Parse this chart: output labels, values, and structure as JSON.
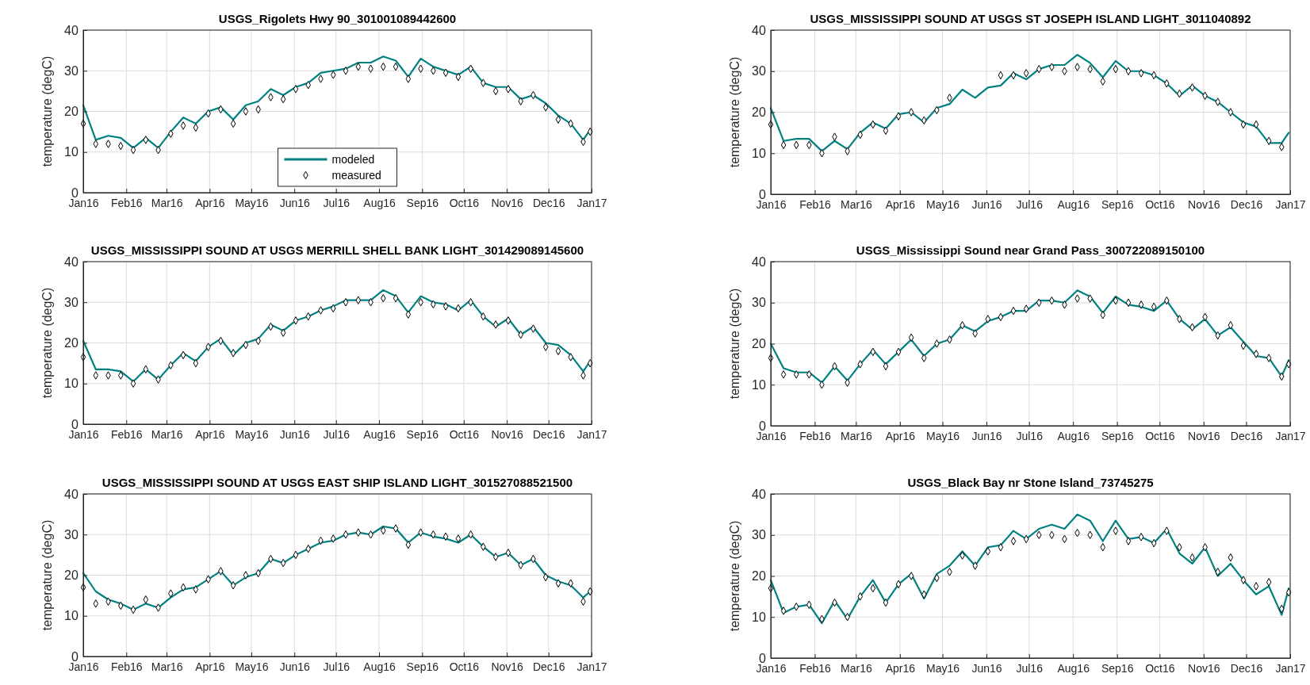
{
  "chart_data": [
    {
      "type": "line",
      "title": "USGS_Rigolets Hwy 90_301001089442600",
      "ylabel": "temperature (degC)",
      "x": [
        "2016-01-01",
        "2016-01-10",
        "2016-01-19",
        "2016-01-28",
        "2016-02-06",
        "2016-02-15",
        "2016-02-24",
        "2016-03-04",
        "2016-03-13",
        "2016-03-22",
        "2016-03-31",
        "2016-04-09",
        "2016-04-18",
        "2016-04-27",
        "2016-05-06",
        "2016-05-15",
        "2016-05-24",
        "2016-06-02",
        "2016-06-11",
        "2016-06-20",
        "2016-06-29",
        "2016-07-08",
        "2016-07-17",
        "2016-07-26",
        "2016-08-04",
        "2016-08-13",
        "2016-08-22",
        "2016-08-31",
        "2016-09-09",
        "2016-09-18",
        "2016-09-27",
        "2016-10-06",
        "2016-10-15",
        "2016-10-24",
        "2016-11-02",
        "2016-11-11",
        "2016-11-20",
        "2016-11-29",
        "2016-12-08",
        "2016-12-17",
        "2016-12-26",
        "2016-12-31"
      ],
      "series": [
        {
          "name": "modeled",
          "type": "line",
          "color": "#008080",
          "values": [
            21.5,
            13,
            14,
            13.5,
            11,
            13.5,
            11,
            15,
            18.5,
            17,
            20,
            21,
            18,
            21.5,
            22.5,
            25.5,
            24,
            26,
            27,
            29.5,
            30,
            30.5,
            32,
            32,
            33.5,
            32.5,
            28.5,
            33,
            31,
            30,
            29,
            31,
            27,
            26,
            26,
            23,
            24,
            22,
            19,
            17,
            13,
            15.5
          ]
        },
        {
          "name": "measured",
          "type": "scatter",
          "marker": "diamond",
          "color": "#000000",
          "values": [
            17,
            12,
            12,
            11.5,
            10.5,
            13,
            10.5,
            14.5,
            16.5,
            16,
            19.5,
            20.5,
            17,
            20,
            20.5,
            23.5,
            23,
            25.5,
            26.5,
            28,
            29,
            30,
            31,
            30.5,
            31,
            31,
            28,
            30.5,
            30,
            29.5,
            28.5,
            30.5,
            27,
            25,
            25.5,
            22.5,
            24,
            21,
            18,
            17,
            12.5,
            15
          ]
        }
      ],
      "xlim": [
        "2016-01-01",
        "2017-01-01"
      ],
      "xticks": [
        {
          "value": "2016-01-01",
          "label": "Jan16"
        },
        {
          "value": "2016-02-01",
          "label": "Feb16"
        },
        {
          "value": "2016-03-01",
          "label": "Mar16"
        },
        {
          "value": "2016-04-01",
          "label": "Apr16"
        },
        {
          "value": "2016-05-01",
          "label": "May16"
        },
        {
          "value": "2016-06-01",
          "label": "Jun16"
        },
        {
          "value": "2016-07-01",
          "label": "Jul16"
        },
        {
          "value": "2016-08-01",
          "label": "Aug16"
        },
        {
          "value": "2016-09-01",
          "label": "Sep16"
        },
        {
          "value": "2016-10-01",
          "label": "Oct16"
        },
        {
          "value": "2016-11-01",
          "label": "Nov16"
        },
        {
          "value": "2016-12-01",
          "label": "Dec16"
        },
        {
          "value": "2017-01-01",
          "label": "Jan17"
        }
      ],
      "ylim": [
        0,
        40
      ],
      "yticks": [
        0,
        10,
        20,
        30,
        40
      ],
      "grid": true,
      "legend": "bottom"
    },
    {
      "type": "line",
      "title": "USGS_MISSISSIPPI SOUND AT USGS ST JOSEPH ISLAND LIGHT_3011040892",
      "ylabel": "temperature (degC)",
      "x": [
        "2016-01-01",
        "2016-01-10",
        "2016-01-19",
        "2016-01-28",
        "2016-02-06",
        "2016-02-15",
        "2016-02-24",
        "2016-03-04",
        "2016-03-13",
        "2016-03-22",
        "2016-03-31",
        "2016-04-09",
        "2016-04-18",
        "2016-04-27",
        "2016-05-06",
        "2016-05-15",
        "2016-05-24",
        "2016-06-02",
        "2016-06-11",
        "2016-06-20",
        "2016-06-29",
        "2016-07-08",
        "2016-07-17",
        "2016-07-26",
        "2016-08-04",
        "2016-08-13",
        "2016-08-22",
        "2016-08-31",
        "2016-09-09",
        "2016-09-18",
        "2016-09-27",
        "2016-10-06",
        "2016-10-15",
        "2016-10-24",
        "2016-11-02",
        "2016-11-11",
        "2016-11-20",
        "2016-11-29",
        "2016-12-08",
        "2016-12-17",
        "2016-12-26",
        "2016-12-31"
      ],
      "series": [
        {
          "type": "line",
          "color": "#008080",
          "values": [
            21,
            13,
            13.5,
            13.5,
            10.5,
            13,
            11,
            15,
            17.5,
            16,
            19.5,
            20,
            17.5,
            21,
            22,
            25.5,
            23.5,
            26,
            26.5,
            29.5,
            28,
            30.5,
            31.5,
            31.5,
            34,
            32,
            28.5,
            32.5,
            30,
            30,
            29,
            27,
            24,
            26.5,
            24,
            22.5,
            20,
            17.5,
            16.5,
            12.5,
            12.5,
            15
          ]
        },
        {
          "type": "scatter",
          "marker": "diamond",
          "color": "#000000",
          "values": [
            17,
            12,
            12,
            12,
            10,
            14,
            10.5,
            14.5,
            17,
            15.5,
            19,
            20,
            18,
            20.5,
            23.5,
            null,
            null,
            null,
            29,
            29,
            29.5,
            30.5,
            31,
            30,
            31,
            30.5,
            27.5,
            30.5,
            30,
            29.5,
            29,
            27,
            24.5,
            26,
            24,
            22.5,
            20,
            17,
            17,
            13,
            11.5,
            null
          ]
        }
      ],
      "xlim": [
        "2016-01-01",
        "2017-01-01"
      ],
      "xticks": [
        {
          "value": "2016-01-01",
          "label": "Jan16"
        },
        {
          "value": "2016-02-01",
          "label": "Feb16"
        },
        {
          "value": "2016-03-01",
          "label": "Mar16"
        },
        {
          "value": "2016-04-01",
          "label": "Apr16"
        },
        {
          "value": "2016-05-01",
          "label": "May16"
        },
        {
          "value": "2016-06-01",
          "label": "Jun16"
        },
        {
          "value": "2016-07-01",
          "label": "Jul16"
        },
        {
          "value": "2016-08-01",
          "label": "Aug16"
        },
        {
          "value": "2016-09-01",
          "label": "Sep16"
        },
        {
          "value": "2016-10-01",
          "label": "Oct16"
        },
        {
          "value": "2016-11-01",
          "label": "Nov16"
        },
        {
          "value": "2016-12-01",
          "label": "Dec16"
        },
        {
          "value": "2017-01-01",
          "label": "Jan17"
        }
      ],
      "ylim": [
        0,
        40
      ],
      "yticks": [
        0,
        10,
        20,
        30,
        40
      ],
      "grid": true
    },
    {
      "type": "line",
      "title": "USGS_MISSISSIPPI SOUND AT USGS MERRILL SHELL BANK LIGHT_301429089145600",
      "ylabel": "temperature (degC)",
      "x": [
        "2016-01-01",
        "2016-01-10",
        "2016-01-19",
        "2016-01-28",
        "2016-02-06",
        "2016-02-15",
        "2016-02-24",
        "2016-03-04",
        "2016-03-13",
        "2016-03-22",
        "2016-03-31",
        "2016-04-09",
        "2016-04-18",
        "2016-04-27",
        "2016-05-06",
        "2016-05-15",
        "2016-05-24",
        "2016-06-02",
        "2016-06-11",
        "2016-06-20",
        "2016-06-29",
        "2016-07-08",
        "2016-07-17",
        "2016-07-26",
        "2016-08-04",
        "2016-08-13",
        "2016-08-22",
        "2016-08-31",
        "2016-09-09",
        "2016-09-18",
        "2016-09-27",
        "2016-10-06",
        "2016-10-15",
        "2016-10-24",
        "2016-11-02",
        "2016-11-11",
        "2016-11-20",
        "2016-11-29",
        "2016-12-08",
        "2016-12-17",
        "2016-12-26",
        "2016-12-31"
      ],
      "series": [
        {
          "type": "line",
          "color": "#008080",
          "values": [
            20.5,
            13.5,
            13.5,
            13,
            10.5,
            13.5,
            11,
            14.5,
            17.5,
            15.5,
            19,
            21,
            17,
            20,
            21,
            24.5,
            23,
            25.5,
            26.5,
            28,
            29,
            30.5,
            30.5,
            30.5,
            33,
            31.5,
            27.5,
            31.5,
            30,
            29.5,
            28,
            30.5,
            26.5,
            24,
            26,
            22,
            24,
            20,
            19.5,
            17,
            13,
            15.5
          ]
        },
        {
          "type": "scatter",
          "marker": "diamond",
          "color": "#000000",
          "values": [
            16.5,
            12,
            12,
            12,
            10,
            13.5,
            11,
            14.5,
            17,
            15,
            19,
            20.5,
            17.5,
            19.5,
            20.5,
            24,
            22.5,
            25.5,
            26.5,
            28,
            28.5,
            30,
            30.5,
            30,
            31,
            31,
            27,
            30,
            29.5,
            29,
            28.5,
            30,
            26.5,
            24.5,
            25.5,
            22,
            23.5,
            19,
            18,
            16.5,
            12,
            15
          ]
        }
      ],
      "xlim": [
        "2016-01-01",
        "2017-01-01"
      ],
      "xticks": [
        {
          "value": "2016-01-01",
          "label": "Jan16"
        },
        {
          "value": "2016-02-01",
          "label": "Feb16"
        },
        {
          "value": "2016-03-01",
          "label": "Mar16"
        },
        {
          "value": "2016-04-01",
          "label": "Apr16"
        },
        {
          "value": "2016-05-01",
          "label": "May16"
        },
        {
          "value": "2016-06-01",
          "label": "Jun16"
        },
        {
          "value": "2016-07-01",
          "label": "Jul16"
        },
        {
          "value": "2016-08-01",
          "label": "Aug16"
        },
        {
          "value": "2016-09-01",
          "label": "Sep16"
        },
        {
          "value": "2016-10-01",
          "label": "Oct16"
        },
        {
          "value": "2016-11-01",
          "label": "Nov16"
        },
        {
          "value": "2016-12-01",
          "label": "Dec16"
        },
        {
          "value": "2017-01-01",
          "label": "Jan17"
        }
      ],
      "ylim": [
        0,
        40
      ],
      "yticks": [
        0,
        10,
        20,
        30,
        40
      ],
      "grid": true
    },
    {
      "type": "line",
      "title": "USGS_Mississippi Sound near Grand Pass_300722089150100",
      "ylabel": "temperature (degC)",
      "x": [
        "2016-01-01",
        "2016-01-10",
        "2016-01-19",
        "2016-01-28",
        "2016-02-06",
        "2016-02-15",
        "2016-02-24",
        "2016-03-04",
        "2016-03-13",
        "2016-03-22",
        "2016-03-31",
        "2016-04-09",
        "2016-04-18",
        "2016-04-27",
        "2016-05-06",
        "2016-05-15",
        "2016-05-24",
        "2016-06-02",
        "2016-06-11",
        "2016-06-20",
        "2016-06-29",
        "2016-07-08",
        "2016-07-17",
        "2016-07-26",
        "2016-08-04",
        "2016-08-13",
        "2016-08-22",
        "2016-08-31",
        "2016-09-09",
        "2016-09-18",
        "2016-09-27",
        "2016-10-06",
        "2016-10-15",
        "2016-10-24",
        "2016-11-02",
        "2016-11-11",
        "2016-11-20",
        "2016-11-29",
        "2016-12-08",
        "2016-12-17",
        "2016-12-26",
        "2016-12-31"
      ],
      "series": [
        {
          "type": "line",
          "color": "#008080",
          "values": [
            20,
            14,
            13,
            13,
            10.5,
            14.5,
            11,
            15,
            18.5,
            15,
            18,
            21,
            17,
            20,
            21,
            24.5,
            23,
            25.5,
            26.5,
            28,
            28,
            30.5,
            30.5,
            30,
            33,
            31.5,
            27.5,
            31.5,
            29.5,
            29,
            28,
            30.5,
            26,
            23.5,
            26,
            22,
            24,
            20.5,
            17,
            16.5,
            12,
            16
          ]
        },
        {
          "type": "scatter",
          "marker": "diamond",
          "color": "#000000",
          "values": [
            16.5,
            12.5,
            12.5,
            12.5,
            10,
            14.5,
            10.5,
            15,
            18,
            14.5,
            18,
            21.5,
            16.5,
            20,
            21,
            24.5,
            22.5,
            26,
            26.5,
            28,
            28.5,
            30,
            30.5,
            29.5,
            31,
            31,
            27,
            30.5,
            30,
            29.5,
            29,
            30.5,
            26,
            24,
            26.5,
            22,
            24.5,
            19.5,
            17.5,
            16.5,
            12,
            15
          ]
        }
      ],
      "xlim": [
        "2016-01-01",
        "2017-01-01"
      ],
      "xticks": [
        {
          "value": "2016-01-01",
          "label": "Jan16"
        },
        {
          "value": "2016-02-01",
          "label": "Feb16"
        },
        {
          "value": "2016-03-01",
          "label": "Mar16"
        },
        {
          "value": "2016-04-01",
          "label": "Apr16"
        },
        {
          "value": "2016-05-01",
          "label": "May16"
        },
        {
          "value": "2016-06-01",
          "label": "Jun16"
        },
        {
          "value": "2016-07-01",
          "label": "Jul16"
        },
        {
          "value": "2016-08-01",
          "label": "Aug16"
        },
        {
          "value": "2016-09-01",
          "label": "Sep16"
        },
        {
          "value": "2016-10-01",
          "label": "Oct16"
        },
        {
          "value": "2016-11-01",
          "label": "Nov16"
        },
        {
          "value": "2016-12-01",
          "label": "Dec16"
        },
        {
          "value": "2017-01-01",
          "label": "Jan17"
        }
      ],
      "ylim": [
        0,
        40
      ],
      "yticks": [
        0,
        10,
        20,
        30,
        40
      ],
      "grid": true
    },
    {
      "type": "line",
      "title": "USGS_MISSISSIPPI SOUND AT USGS EAST SHIP ISLAND LIGHT_301527088521500",
      "ylabel": "temperature (degC)",
      "x": [
        "2016-01-01",
        "2016-01-10",
        "2016-01-19",
        "2016-01-28",
        "2016-02-06",
        "2016-02-15",
        "2016-02-24",
        "2016-03-04",
        "2016-03-13",
        "2016-03-22",
        "2016-03-31",
        "2016-04-09",
        "2016-04-18",
        "2016-04-27",
        "2016-05-06",
        "2016-05-15",
        "2016-05-24",
        "2016-06-02",
        "2016-06-11",
        "2016-06-20",
        "2016-06-29",
        "2016-07-08",
        "2016-07-17",
        "2016-07-26",
        "2016-08-04",
        "2016-08-13",
        "2016-08-22",
        "2016-08-31",
        "2016-09-09",
        "2016-09-18",
        "2016-09-27",
        "2016-10-06",
        "2016-10-15",
        "2016-10-24",
        "2016-11-02",
        "2016-11-11",
        "2016-11-20",
        "2016-11-29",
        "2016-12-08",
        "2016-12-17",
        "2016-12-26",
        "2016-12-31"
      ],
      "series": [
        {
          "type": "line",
          "color": "#008080",
          "values": [
            20.5,
            16,
            14,
            13,
            11.5,
            13,
            12,
            14.5,
            16.5,
            17,
            19,
            21,
            17.5,
            19.5,
            20.5,
            24,
            23,
            25,
            26.5,
            28,
            28.5,
            30,
            30.5,
            30,
            32,
            31.5,
            28,
            30.5,
            29.5,
            29,
            28,
            30,
            27,
            24.5,
            25.5,
            22.5,
            24,
            20,
            18.5,
            17.5,
            14.5,
            16
          ]
        },
        {
          "type": "scatter",
          "marker": "diamond",
          "color": "#000000",
          "values": [
            17,
            13,
            13.5,
            12.5,
            11.5,
            14,
            12,
            15.5,
            17,
            16.5,
            19,
            21,
            17.5,
            20,
            20.5,
            24,
            23,
            25,
            26.5,
            28.5,
            29,
            30,
            30.5,
            30,
            31,
            31.5,
            27.5,
            30.5,
            30,
            29.5,
            29,
            30,
            27,
            24.5,
            25.5,
            22.5,
            24,
            19.5,
            18,
            18,
            13.5,
            16
          ]
        }
      ],
      "xlim": [
        "2016-01-01",
        "2017-01-01"
      ],
      "xticks": [
        {
          "value": "2016-01-01",
          "label": "Jan16"
        },
        {
          "value": "2016-02-01",
          "label": "Feb16"
        },
        {
          "value": "2016-03-01",
          "label": "Mar16"
        },
        {
          "value": "2016-04-01",
          "label": "Apr16"
        },
        {
          "value": "2016-05-01",
          "label": "May16"
        },
        {
          "value": "2016-06-01",
          "label": "Jun16"
        },
        {
          "value": "2016-07-01",
          "label": "Jul16"
        },
        {
          "value": "2016-08-01",
          "label": "Aug16"
        },
        {
          "value": "2016-09-01",
          "label": "Sep16"
        },
        {
          "value": "2016-10-01",
          "label": "Oct16"
        },
        {
          "value": "2016-11-01",
          "label": "Nov16"
        },
        {
          "value": "2016-12-01",
          "label": "Dec16"
        },
        {
          "value": "2017-01-01",
          "label": "Jan17"
        }
      ],
      "ylim": [
        0,
        40
      ],
      "yticks": [
        0,
        10,
        20,
        30,
        40
      ],
      "grid": true
    },
    {
      "type": "line",
      "title": "USGS_Black Bay nr Stone Island_73745275",
      "ylabel": "temperature (degC)",
      "x": [
        "2016-01-01",
        "2016-01-10",
        "2016-01-19",
        "2016-01-28",
        "2016-02-06",
        "2016-02-15",
        "2016-02-24",
        "2016-03-04",
        "2016-03-13",
        "2016-03-22",
        "2016-03-31",
        "2016-04-09",
        "2016-04-18",
        "2016-04-27",
        "2016-05-06",
        "2016-05-15",
        "2016-05-24",
        "2016-06-02",
        "2016-06-11",
        "2016-06-20",
        "2016-06-29",
        "2016-07-08",
        "2016-07-17",
        "2016-07-26",
        "2016-08-04",
        "2016-08-13",
        "2016-08-22",
        "2016-08-31",
        "2016-09-09",
        "2016-09-18",
        "2016-09-27",
        "2016-10-06",
        "2016-10-15",
        "2016-10-24",
        "2016-11-02",
        "2016-11-11",
        "2016-11-20",
        "2016-11-29",
        "2016-12-08",
        "2016-12-17",
        "2016-12-26",
        "2016-12-31"
      ],
      "series": [
        {
          "type": "line",
          "color": "#008080",
          "values": [
            19,
            11,
            12.5,
            13,
            8.5,
            14,
            9.5,
            15,
            19,
            13.5,
            18,
            20.5,
            14.5,
            20.5,
            22.5,
            26,
            22.5,
            27,
            27.5,
            31,
            29,
            31.5,
            32.5,
            31.5,
            35,
            33.5,
            28.5,
            33.5,
            29,
            29.5,
            28,
            31.5,
            25.5,
            23,
            27,
            20,
            23,
            19,
            15.5,
            17.5,
            10.5,
            17
          ]
        },
        {
          "type": "scatter",
          "marker": "diamond",
          "color": "#000000",
          "values": [
            17,
            11.5,
            12.5,
            13,
            9.5,
            13.5,
            10,
            15,
            17,
            13.5,
            18,
            20,
            15.5,
            19.5,
            21,
            25,
            22.5,
            26,
            27,
            28.5,
            29,
            30,
            30,
            29,
            30.5,
            30,
            27,
            31,
            28.5,
            29.5,
            28,
            31,
            27,
            24.5,
            27,
            21,
            24.5,
            19,
            17.5,
            18.5,
            12,
            16
          ]
        }
      ],
      "xlim": [
        "2016-01-01",
        "2017-01-01"
      ],
      "xticks": [
        {
          "value": "2016-01-01",
          "label": "Jan16"
        },
        {
          "value": "2016-02-01",
          "label": "Feb16"
        },
        {
          "value": "2016-03-01",
          "label": "Mar16"
        },
        {
          "value": "2016-04-01",
          "label": "Apr16"
        },
        {
          "value": "2016-05-01",
          "label": "May16"
        },
        {
          "value": "2016-06-01",
          "label": "Jun16"
        },
        {
          "value": "2016-07-01",
          "label": "Jul16"
        },
        {
          "value": "2016-08-01",
          "label": "Aug16"
        },
        {
          "value": "2016-09-01",
          "label": "Sep16"
        },
        {
          "value": "2016-10-01",
          "label": "Oct16"
        },
        {
          "value": "2016-11-01",
          "label": "Nov16"
        },
        {
          "value": "2016-12-01",
          "label": "Dec16"
        },
        {
          "value": "2017-01-01",
          "label": "Jan17"
        }
      ],
      "ylim": [
        0,
        40
      ],
      "yticks": [
        0,
        10,
        20,
        30,
        40
      ],
      "grid": true
    }
  ]
}
